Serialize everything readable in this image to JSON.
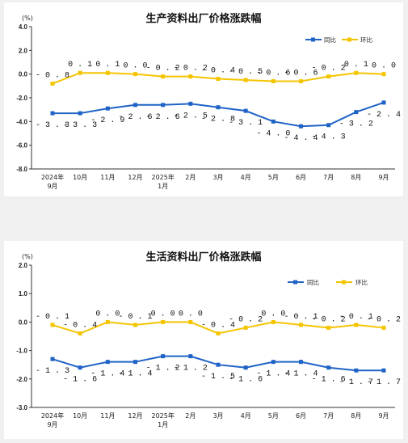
{
  "colors": {
    "yoy": "#1f63c6",
    "mom": "#f5c400",
    "axis": "#333333",
    "grid": "#e6e6e6"
  },
  "chart_data": [
    {
      "type": "line",
      "title": "生产资料出厂价格涨跌幅",
      "ylabel": "(%)",
      "ylim": [
        -8.0,
        4.0
      ],
      "yticks": [
        "4.0",
        "2.0",
        "0.0",
        "-2.0",
        "-4.0",
        "-6.0",
        "-8.0"
      ],
      "categories": [
        [
          "2024年",
          "9月"
        ],
        [
          "10月"
        ],
        [
          "11月"
        ],
        [
          "12月"
        ],
        [
          "2025年",
          "1月"
        ],
        [
          "2月"
        ],
        [
          "3月"
        ],
        [
          "4月"
        ],
        [
          "5月"
        ],
        [
          "6月"
        ],
        [
          "7月"
        ],
        [
          "8月"
        ],
        [
          "9月"
        ]
      ],
      "legend": "top-right",
      "series": [
        {
          "name": "同比",
          "key": "yoy",
          "values": [
            -3.3,
            -3.3,
            -2.9,
            -2.6,
            -2.6,
            -2.5,
            -2.8,
            -3.1,
            -4.0,
            -4.4,
            -4.3,
            -3.2,
            -2.4
          ]
        },
        {
          "name": "环比",
          "key": "mom",
          "values": [
            -0.8,
            0.1,
            0.1,
            0.0,
            -0.2,
            -0.2,
            -0.4,
            -0.5,
            -0.6,
            -0.6,
            -0.2,
            0.1,
            0.0
          ]
        }
      ]
    },
    {
      "type": "line",
      "title": "生活资料出厂价格涨跌幅",
      "ylabel": "(%)",
      "ylim": [
        -3.0,
        2.0
      ],
      "yticks": [
        "2.0",
        "1.0",
        "0.0",
        "-1.0",
        "-2.0",
        "-3.0"
      ],
      "categories": [
        [
          "2024年",
          "9月"
        ],
        [
          "10月"
        ],
        [
          "11月"
        ],
        [
          "12月"
        ],
        [
          "2025年",
          "1月"
        ],
        [
          "2月"
        ],
        [
          "3月"
        ],
        [
          "4月"
        ],
        [
          "5月"
        ],
        [
          "6月"
        ],
        [
          "7月"
        ],
        [
          "8月"
        ],
        [
          "9月"
        ]
      ],
      "legend": "top-right",
      "series": [
        {
          "name": "同比",
          "key": "yoy",
          "values": [
            -1.3,
            -1.6,
            -1.4,
            -1.4,
            -1.2,
            -1.2,
            -1.5,
            -1.6,
            -1.4,
            -1.4,
            -1.6,
            -1.7,
            -1.7
          ]
        },
        {
          "name": "环比",
          "key": "mom",
          "values": [
            -0.1,
            -0.4,
            0.0,
            -0.1,
            0.0,
            0.0,
            -0.4,
            -0.2,
            0.0,
            -0.1,
            -0.2,
            -0.1,
            -0.2
          ]
        }
      ]
    }
  ]
}
